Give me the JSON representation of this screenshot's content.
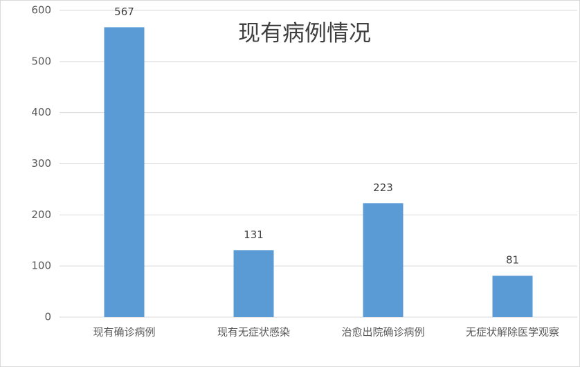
{
  "chart_data": {
    "type": "bar",
    "title": "现有病例情况",
    "categories": [
      "现有确诊病例",
      "现有无症状感染",
      "治愈出院确诊病例",
      "无症状解除医学观察"
    ],
    "values": [
      567,
      131,
      223,
      81
    ],
    "color": "#5b9bd5",
    "ylim": [
      0,
      600
    ],
    "yticks": [
      0,
      100,
      200,
      300,
      400,
      500,
      600
    ],
    "grid": true
  }
}
